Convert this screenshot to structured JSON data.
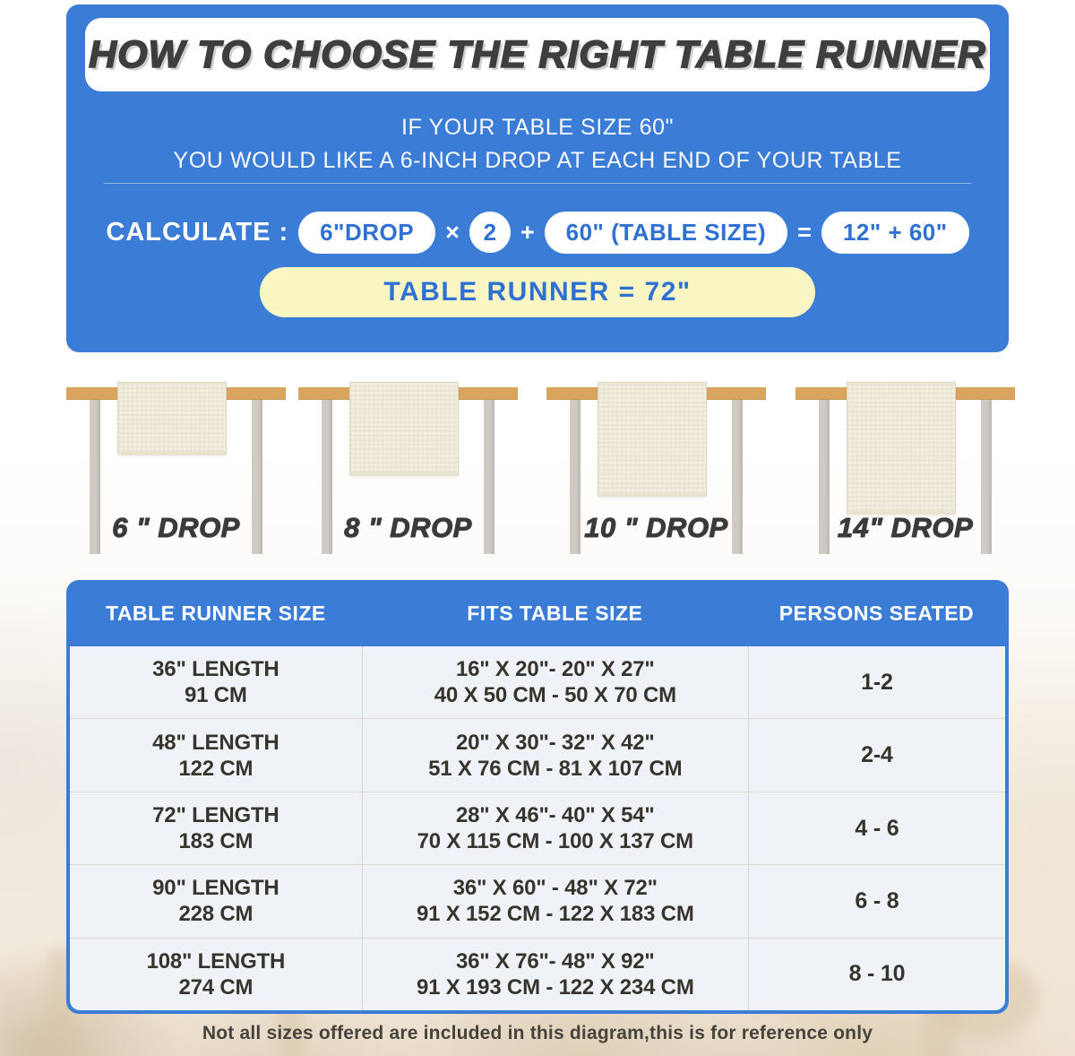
{
  "colors": {
    "panel_blue": "#3B7CD6",
    "banner_yellow": "#FAF6C3",
    "pill_text_blue": "#2E71D3",
    "tabletop_tan": "#D9A45E",
    "runner_cream": "#F2EDDE",
    "title_charcoal": "#3E3E3E"
  },
  "header": {
    "title": "HOW TO CHOOSE THE RIGHT TABLE RUNNER",
    "subtitle_line1": "IF YOUR TABLE SIZE 60\"",
    "subtitle_line2": "YOU WOULD LIKE A 6-INCH DROP AT EACH END OF YOUR TABLE",
    "calculate_label": "CALCULATE :",
    "formula": {
      "drop_pill": "6\"DROP",
      "times": "×",
      "multiplier": "2",
      "plus": "+",
      "table_size_pill": "60\" (TABLE SIZE)",
      "equals": "=",
      "result_pill": "12\" + 60\""
    },
    "result_banner": "TABLE RUNNER = 72\""
  },
  "drop_diagrams": [
    {
      "label": "6 \" DROP"
    },
    {
      "label": "8 \" DROP"
    },
    {
      "label": "10 \" DROP"
    },
    {
      "label": "14\" DROP"
    }
  ],
  "size_table": {
    "columns": [
      "TABLE RUNNER SIZE",
      "FITS TABLE SIZE",
      "PERSONS SEATED"
    ],
    "rows": [
      {
        "runner_in": "36\" LENGTH",
        "runner_cm": "91 CM",
        "fits_in": "16\" X 20\"- 20\" X 27\"",
        "fits_cm": "40 X 50 CM - 50 X 70 CM",
        "persons": "1-2"
      },
      {
        "runner_in": "48\" LENGTH",
        "runner_cm": "122 CM",
        "fits_in": "20\" X 30\"- 32\" X 42\"",
        "fits_cm": "51 X 76 CM - 81 X 107 CM",
        "persons": "2-4"
      },
      {
        "runner_in": "72\" LENGTH",
        "runner_cm": "183 CM",
        "fits_in": "28\" X 46\"- 40\" X 54\"",
        "fits_cm": "70 X 115 CM - 100 X 137 CM",
        "persons": "4 - 6"
      },
      {
        "runner_in": "90\" LENGTH",
        "runner_cm": "228 CM",
        "fits_in": "36\" X 60\" - 48\" X 72\"",
        "fits_cm": "91 X 152 CM - 122 X 183 CM",
        "persons": "6 - 8"
      },
      {
        "runner_in": "108\" LENGTH",
        "runner_cm": "274 CM",
        "fits_in": "36\" X 76\"- 48\" X 92\"",
        "fits_cm": "91 X 193 CM - 122 X 234 CM",
        "persons": "8 - 10"
      }
    ]
  },
  "footer_note": "Not all sizes offered are included in this diagram,this is for reference only"
}
